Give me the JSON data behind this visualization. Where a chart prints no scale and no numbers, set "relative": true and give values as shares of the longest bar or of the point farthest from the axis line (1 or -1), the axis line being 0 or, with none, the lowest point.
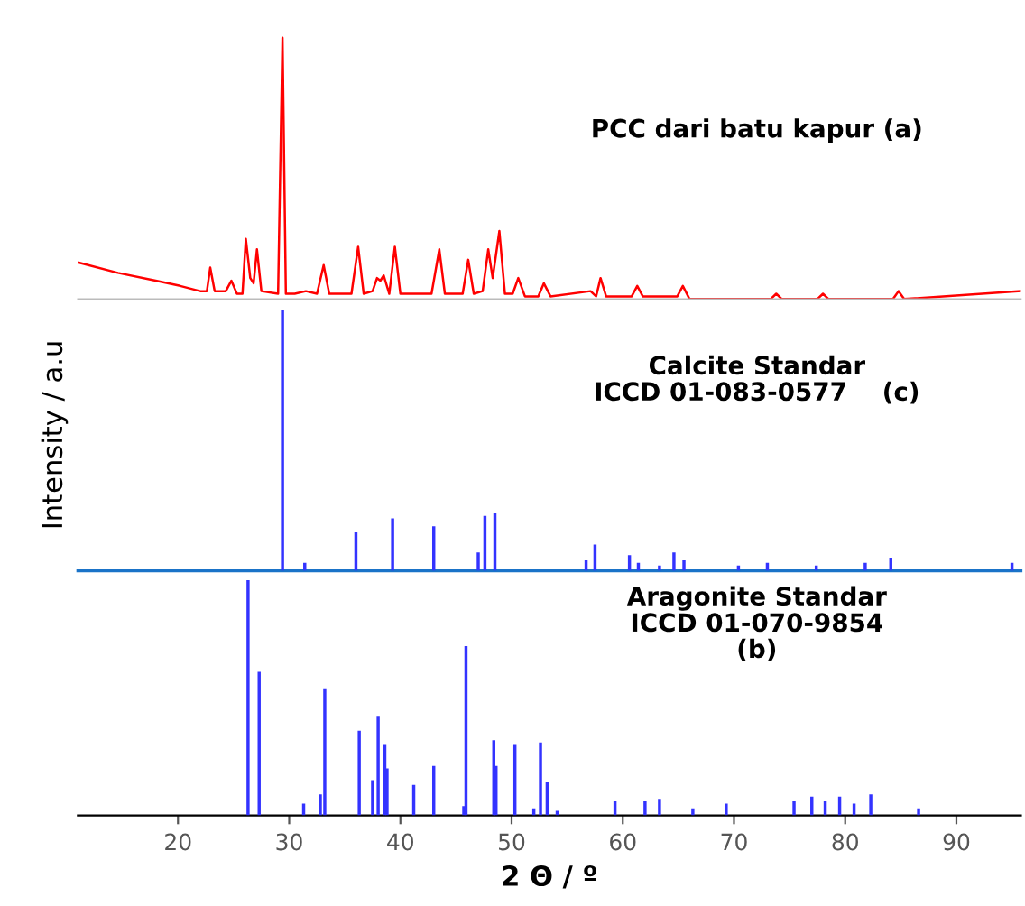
{
  "chart_data": [
    {
      "type": "line",
      "relative": true,
      "xlim": [
        11,
        95.8
      ],
      "tick_labels": false,
      "annotations": [
        "PCC dari batu kapur (a)"
      ],
      "series": [
        {
          "color": "#ff0000",
          "x": [
            11.0,
            14.6,
            18.0,
            20.2,
            22.0,
            22.6,
            22.9,
            23.3,
            24.3,
            24.8,
            25.3,
            25.8,
            26.1,
            26.5,
            26.8,
            27.1,
            27.5,
            29.0,
            29.4,
            29.7,
            30.5,
            31.5,
            32.5,
            33.1,
            33.6,
            35.6,
            36.2,
            36.7,
            37.5,
            37.9,
            38.2,
            38.5,
            39.0,
            39.5,
            40.0,
            42.8,
            43.5,
            44.0,
            45.6,
            46.1,
            46.6,
            47.4,
            47.9,
            48.3,
            48.9,
            49.4,
            50.1,
            50.6,
            51.2,
            52.4,
            52.9,
            53.5,
            57.1,
            57.6,
            58.0,
            58.5,
            60.8,
            61.3,
            61.8,
            64.9,
            65.4,
            66.0,
            73.3,
            73.8,
            74.3,
            77.5,
            78.0,
            78.5,
            84.3,
            84.8,
            85.3,
            95.8
          ],
          "values": [
            0.14,
            0.1,
            0.07,
            0.05,
            0.03,
            0.03,
            0.12,
            0.03,
            0.03,
            0.07,
            0.02,
            0.02,
            0.23,
            0.08,
            0.06,
            0.19,
            0.03,
            0.02,
            1.0,
            0.02,
            0.02,
            0.03,
            0.02,
            0.13,
            0.02,
            0.02,
            0.2,
            0.02,
            0.03,
            0.08,
            0.07,
            0.09,
            0.02,
            0.2,
            0.02,
            0.02,
            0.19,
            0.02,
            0.02,
            0.15,
            0.02,
            0.03,
            0.19,
            0.08,
            0.26,
            0.02,
            0.02,
            0.08,
            0.01,
            0.01,
            0.06,
            0.01,
            0.03,
            0.01,
            0.08,
            0.01,
            0.01,
            0.05,
            0.01,
            0.01,
            0.05,
            0.0,
            0.0,
            0.02,
            0.0,
            0.0,
            0.02,
            0.0,
            0.0,
            0.03,
            0.0,
            0.03
          ]
        }
      ]
    },
    {
      "type": "bar",
      "relative": true,
      "xlim": [
        11,
        95.8
      ],
      "tick_labels": false,
      "ylabel": "Intensity / a.u",
      "annotations": [
        "Calcite Standar\nICCD 01-083-0577    (c)"
      ],
      "series": [
        {
          "color": "#3333ff",
          "x": [
            29.4,
            31.4,
            36.0,
            39.3,
            43.0,
            47.0,
            47.6,
            48.5,
            56.7,
            57.5,
            60.6,
            61.4,
            63.3,
            64.6,
            65.5,
            70.4,
            73.0,
            77.4,
            81.8,
            84.1,
            95.0
          ],
          "values": [
            1.0,
            0.03,
            0.15,
            0.2,
            0.17,
            0.07,
            0.21,
            0.22,
            0.04,
            0.1,
            0.06,
            0.03,
            0.02,
            0.07,
            0.04,
            0.02,
            0.03,
            0.02,
            0.03,
            0.05,
            0.03
          ]
        }
      ]
    },
    {
      "type": "bar",
      "relative": true,
      "xlim": [
        11,
        95.8
      ],
      "xticks": [
        20,
        30,
        40,
        50,
        60,
        70,
        80,
        90
      ],
      "tick_labels": "x",
      "xlabel": "2 Θ / º",
      "annotations": [
        "Aragonite Standar\nICCD 01-070-9854\n(b)"
      ],
      "series": [
        {
          "color": "#3333ff",
          "x": [
            26.3,
            27.3,
            31.3,
            32.8,
            33.2,
            36.3,
            37.5,
            38.0,
            38.6,
            38.8,
            41.2,
            43.0,
            45.7,
            45.9,
            48.4,
            48.6,
            50.3,
            52.0,
            52.6,
            53.2,
            54.1,
            59.3,
            62.0,
            63.3,
            66.3,
            69.3,
            75.4,
            77.0,
            78.2,
            79.5,
            80.8,
            82.3,
            86.6
          ],
          "values": [
            1.0,
            0.61,
            0.05,
            0.09,
            0.54,
            0.36,
            0.15,
            0.42,
            0.3,
            0.2,
            0.13,
            0.21,
            0.04,
            0.72,
            0.32,
            0.21,
            0.3,
            0.03,
            0.31,
            0.14,
            0.02,
            0.06,
            0.06,
            0.07,
            0.03,
            0.05,
            0.06,
            0.08,
            0.06,
            0.08,
            0.05,
            0.09,
            0.03
          ]
        }
      ]
    }
  ]
}
